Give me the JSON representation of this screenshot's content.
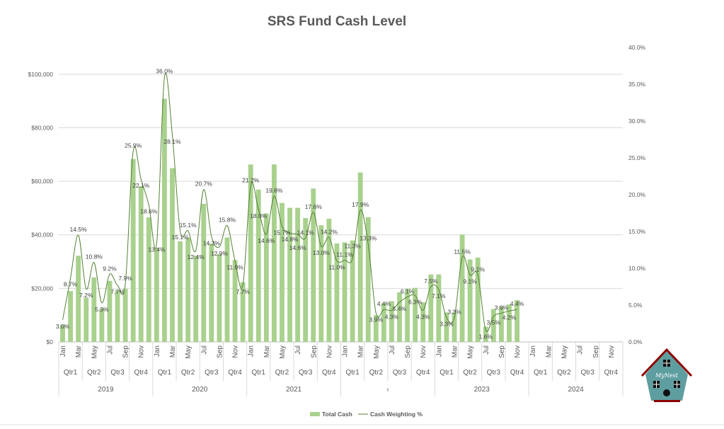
{
  "chart_data": {
    "type": "bar",
    "title": "SRS Fund Cash Level",
    "years": [
      "2019",
      "2020",
      "2021",
      "›",
      "2023",
      "2024"
    ],
    "quarters": [
      "Qtr1",
      "Qtr2",
      "Qtr3",
      "Qtr4"
    ],
    "month_labels": [
      "Jan",
      "Mar",
      "May",
      "Jul",
      "Sep",
      "Nov"
    ],
    "ylim": [
      0,
      110000
    ],
    "y_ticks": [
      "$0",
      "$20,000",
      "$40,000",
      "$60,000",
      "$80,000",
      "$100,000"
    ],
    "y2lim": [
      0,
      40
    ],
    "y2_ticks": [
      "0.0%",
      "5.0%",
      "10.0%",
      "15.0%",
      "20.0%",
      "25.0%",
      "30.0%",
      "35.0%",
      "40.0%"
    ],
    "legend_position": "bottom",
    "colors": {
      "bar": "#a9d18e",
      "line": "#548235"
    },
    "series": [
      {
        "name": "Total Cash",
        "type": "bar",
        "values": [
          6400,
          19000,
          32200,
          16500,
          24100,
          12500,
          22800,
          19200,
          19800,
          68300,
          58200,
          46500,
          35200,
          90800,
          64900,
          37600,
          38900,
          32200,
          51600,
          36700,
          32800,
          39000,
          30600,
          22300,
          66300,
          56900,
          48000,
          66300,
          51900,
          50100,
          50100,
          46300,
          57300,
          43600,
          46000,
          36800,
          37200,
          37900,
          63300,
          46600,
          10000,
          14500,
          15200,
          18500,
          19800,
          20200,
          14800,
          25200,
          25200,
          11000,
          11000,
          40100,
          30800,
          31500,
          5700,
          12300,
          13200,
          14000,
          15600
        ]
      },
      {
        "name": "Cash Weighting %",
        "type": "line",
        "values": [
          3.0,
          8.7,
          14.5,
          7.2,
          10.8,
          5.3,
          9.2,
          7.7,
          7.9,
          25.9,
          22.1,
          18.6,
          13.4,
          36.0,
          28.1,
          15.1,
          15.1,
          12.4,
          20.7,
          14.3,
          12.9,
          15.8,
          11.0,
          7.7,
          21.2,
          18.0,
          14.6,
          19.8,
          15.7,
          14.8,
          14.6,
          14.1,
          17.6,
          13.0,
          14.2,
          11.0,
          11.1,
          11.3,
          17.9,
          13.3,
          3.9,
          4.4,
          4.3,
          5.4,
          6.1,
          6.3,
          4.3,
          7.5,
          7.1,
          3.3,
          3.3,
          11.5,
          9.1,
          9.1,
          1.6,
          3.5,
          3.9,
          4.2,
          4.4
        ],
        "labels": [
          "3.0%",
          "8.7%",
          "14.5%",
          "7.2%",
          "10.8%",
          "5.3%",
          "9.2%",
          "7.7%",
          "7.9%",
          "25.9%",
          "22.1%",
          "18.6%",
          "13.4%",
          "36.0%",
          "28.1%",
          "15.1%",
          "15.1%",
          "12.4%",
          "20.7%",
          "14.3%",
          "12.9%",
          "15.8%",
          "11.0%",
          "7.7%",
          "21.2%",
          "18.0%",
          "14.6%",
          "19.8%",
          "15.7%",
          "14.8%",
          "14.6%",
          "14.1%",
          "17.6%",
          "13.0%",
          "14.2%",
          "11.0%",
          "11.1%",
          "11.3%",
          "17.9%",
          "13.3%",
          "3.9%",
          "4.4%",
          "4.3%",
          "5.4%",
          "6.1%",
          "6.3%",
          "4.3%",
          "7.5%",
          "7.1%",
          "3.3%",
          "3.3%",
          "11.5%",
          "9.1%",
          "9.1%",
          "1.6%",
          "3.5%",
          "3.9%",
          "4.2%",
          "4.4%"
        ]
      }
    ],
    "legend": [
      "Total Cash",
      "Cash Weighting %"
    ],
    "logo_text": "MyNest"
  }
}
